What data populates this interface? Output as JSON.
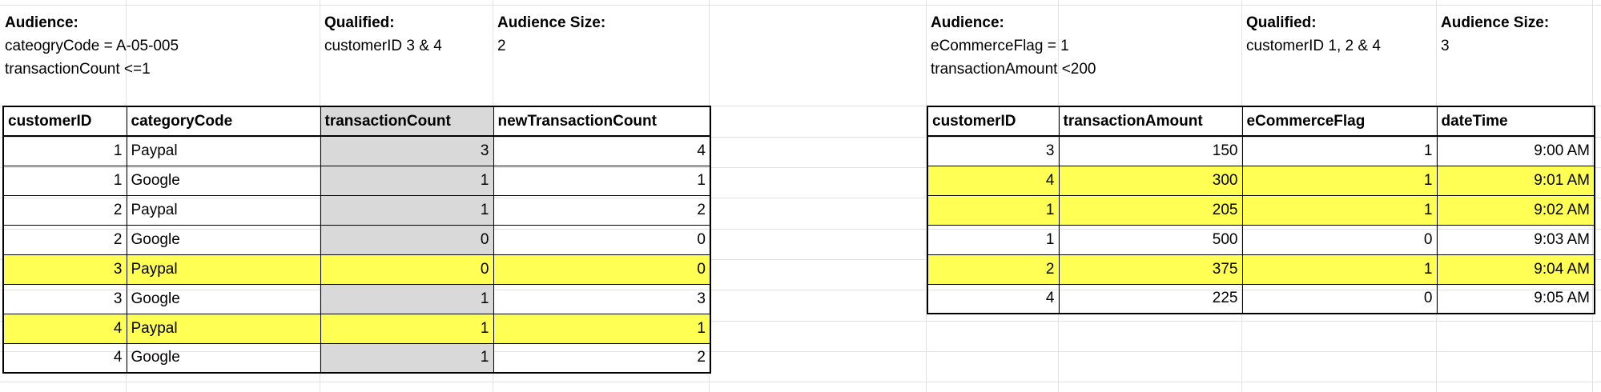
{
  "left": {
    "audience_label": "Audience:",
    "audience_lines": [
      "cateogryCode = A-05-005",
      "transactionCount <=1"
    ],
    "qualified_label": "Qualified:",
    "qualified_value": "customerID 3 & 4",
    "size_label": "Audience Size:",
    "size_value": "2",
    "columns": [
      "customerID",
      "categoryCode",
      "transactionCount",
      "newTransactionCount"
    ],
    "rows": [
      {
        "cells": [
          "1",
          "Paypal",
          "3",
          "4"
        ],
        "highlighted": false
      },
      {
        "cells": [
          "1",
          "Google",
          "1",
          "1"
        ],
        "highlighted": false
      },
      {
        "cells": [
          "2",
          "Paypal",
          "1",
          "2"
        ],
        "highlighted": false
      },
      {
        "cells": [
          "2",
          "Google",
          "0",
          "0"
        ],
        "highlighted": false
      },
      {
        "cells": [
          "3",
          "Paypal",
          "0",
          "0"
        ],
        "highlighted": true
      },
      {
        "cells": [
          "3",
          "Google",
          "1",
          "3"
        ],
        "highlighted": false
      },
      {
        "cells": [
          "4",
          "Paypal",
          "1",
          "1"
        ],
        "highlighted": true
      },
      {
        "cells": [
          "4",
          "Google",
          "1",
          "2"
        ],
        "highlighted": false
      }
    ]
  },
  "right": {
    "audience_label": "Audience:",
    "audience_lines": [
      "eCommerceFlag = 1",
      "transactionAmount <200"
    ],
    "qualified_label": "Qualified:",
    "qualified_value": "customerID 1, 2 & 4",
    "size_label": "Audience Size:",
    "size_value": "3",
    "columns": [
      "customerID",
      "transactionAmount",
      "eCommerceFlag",
      "dateTime"
    ],
    "rows": [
      {
        "cells": [
          "3",
          "150",
          "1",
          "9:00 AM"
        ],
        "highlighted": false
      },
      {
        "cells": [
          "4",
          "300",
          "1",
          "9:01 AM"
        ],
        "highlighted": true
      },
      {
        "cells": [
          "1",
          "205",
          "1",
          "9:02 AM"
        ],
        "highlighted": true
      },
      {
        "cells": [
          "1",
          "500",
          "0",
          "9:03 AM"
        ],
        "highlighted": false
      },
      {
        "cells": [
          "2",
          "375",
          "1",
          "9:04 AM"
        ],
        "highlighted": true
      },
      {
        "cells": [
          "4",
          "225",
          "0",
          "9:05 AM"
        ],
        "highlighted": false
      }
    ]
  },
  "colors": {
    "highlight": "#ffff54",
    "shaded_column": "#d9d9d9",
    "gridline": "#e2e2e2"
  }
}
